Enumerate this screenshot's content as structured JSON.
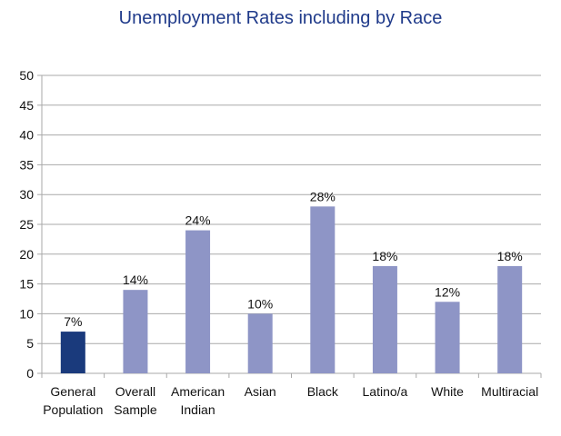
{
  "chart_data": {
    "type": "bar",
    "title": "Unemployment Rates including by Race",
    "categories": [
      [
        "General",
        "Population"
      ],
      [
        "Overall",
        "Sample"
      ],
      [
        "American",
        "Indian"
      ],
      [
        "Asian"
      ],
      [
        "Black"
      ],
      [
        "Latino/a"
      ],
      [
        "White"
      ],
      [
        "Multiracial"
      ]
    ],
    "values": [
      7,
      14,
      24,
      10,
      28,
      18,
      12,
      18
    ],
    "data_labels": [
      "7%",
      "14%",
      "24%",
      "10%",
      "28%",
      "18%",
      "12%",
      "18%"
    ],
    "ylim": [
      0,
      50
    ],
    "yticks": [
      0,
      5,
      10,
      15,
      20,
      25,
      30,
      35,
      40,
      45,
      50
    ],
    "grid": true,
    "colors": {
      "highlight": "#1a3a7c",
      "bar": "#8e95c6",
      "grid": "#a9a9a9",
      "title": "#1f3a8a"
    },
    "highlight_index": 0
  }
}
